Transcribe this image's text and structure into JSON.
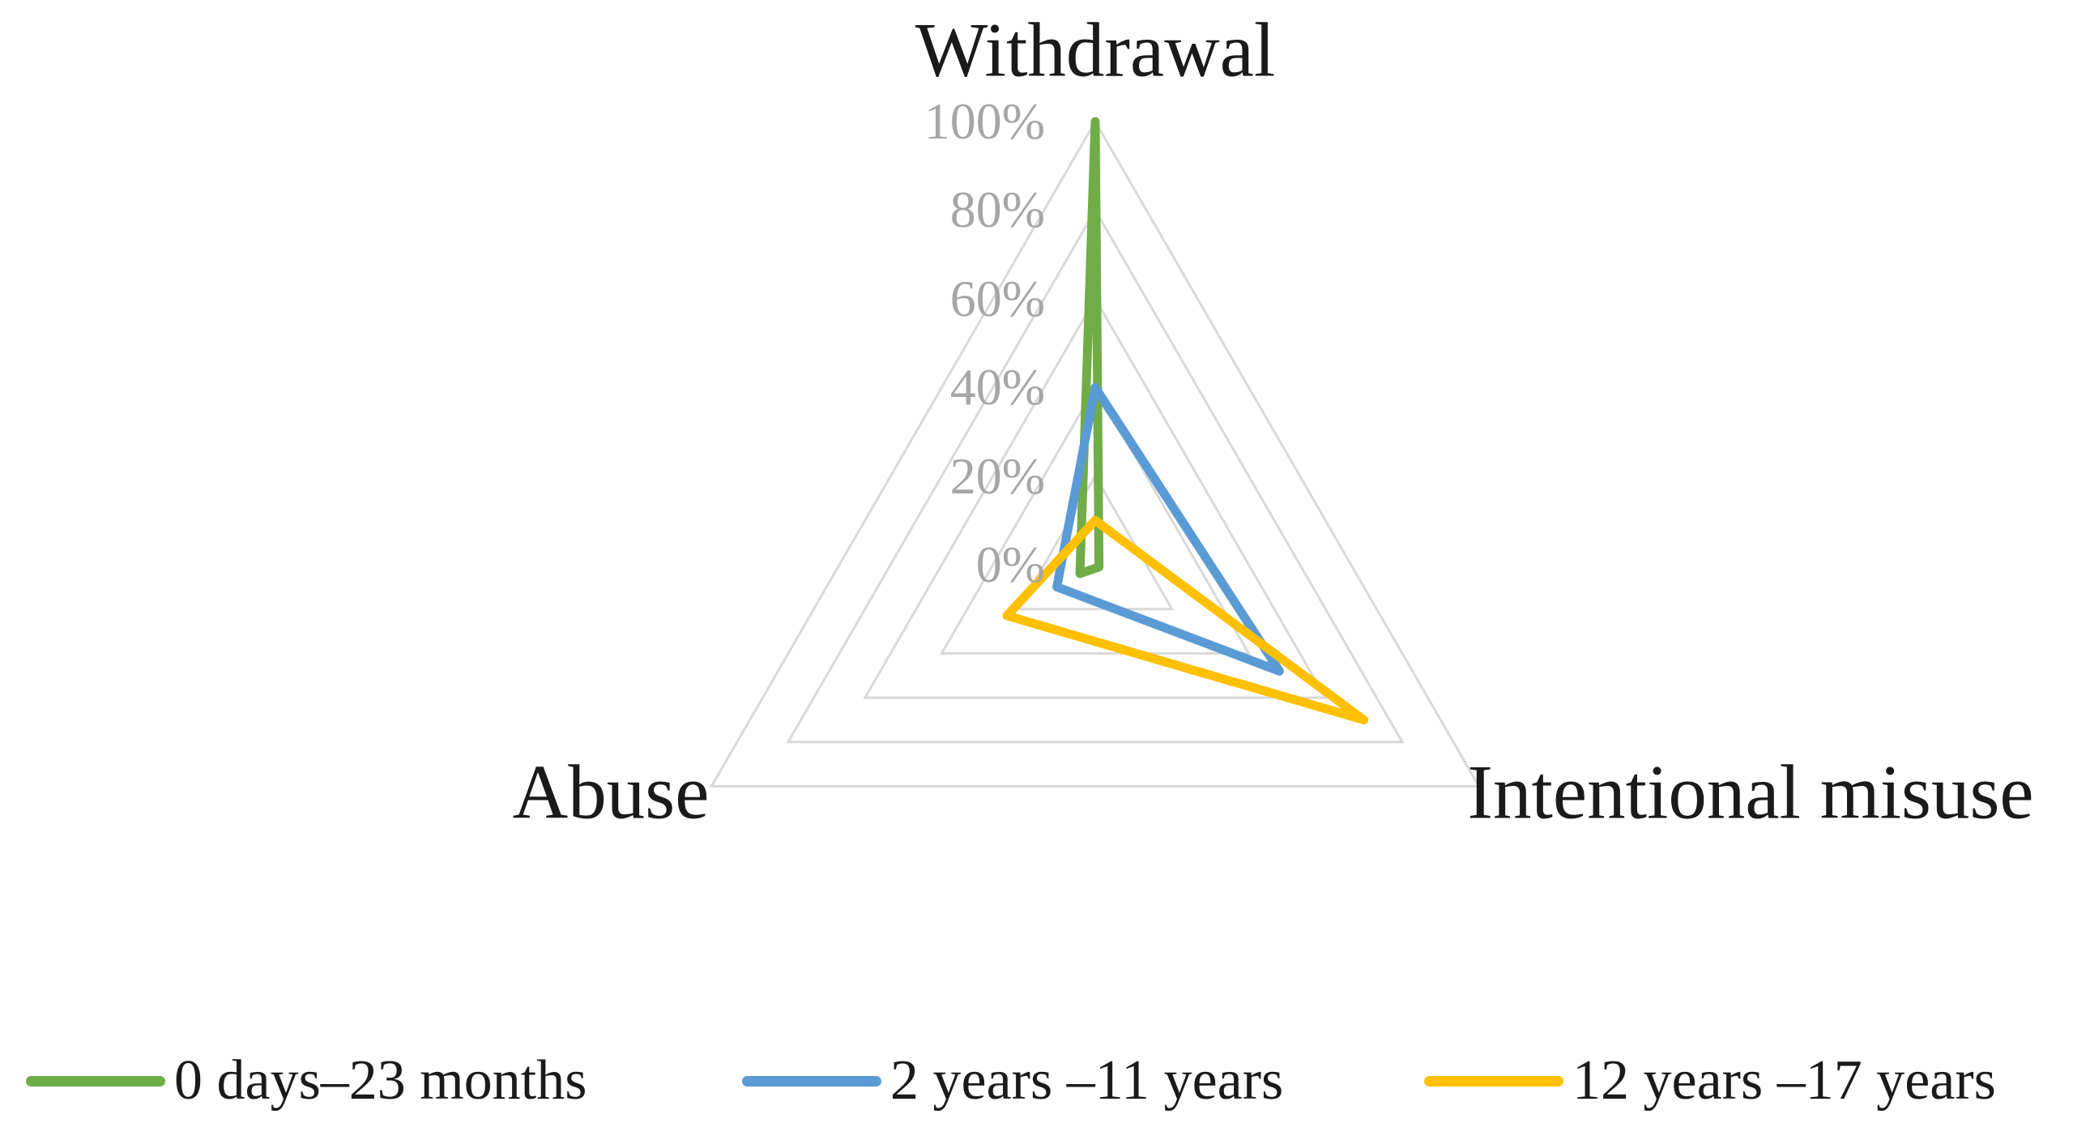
{
  "chart_data": {
    "type": "radar",
    "title": "",
    "categories": [
      "Withdrawal",
      "Abuse",
      "Intentional misuse"
    ],
    "series": [
      {
        "name": "0 days–23 months",
        "color": "#70AD47",
        "values": [
          100,
          4,
          1
        ]
      },
      {
        "name": "2 years –11 years",
        "color": "#5B9BD5",
        "values": [
          40,
          10,
          48
        ]
      },
      {
        "name": "12 years –17 years",
        "color": "#FFC000",
        "values": [
          10,
          23,
          70
        ]
      }
    ],
    "axis": {
      "min": 0,
      "max": 100,
      "step": 20,
      "tick_labels": [
        "100%",
        "80%",
        "60%",
        "40%",
        "20%",
        "0%"
      ],
      "tick_color": "#A6A6A6"
    },
    "grid": {
      "shape": "triangle",
      "rings": [
        20,
        40,
        60,
        80,
        100
      ],
      "color": "#D9D9D9",
      "spokes": "vertical-axis-only"
    },
    "legend_position": "bottom",
    "line_width": 11,
    "background": "#FFFFFF"
  }
}
